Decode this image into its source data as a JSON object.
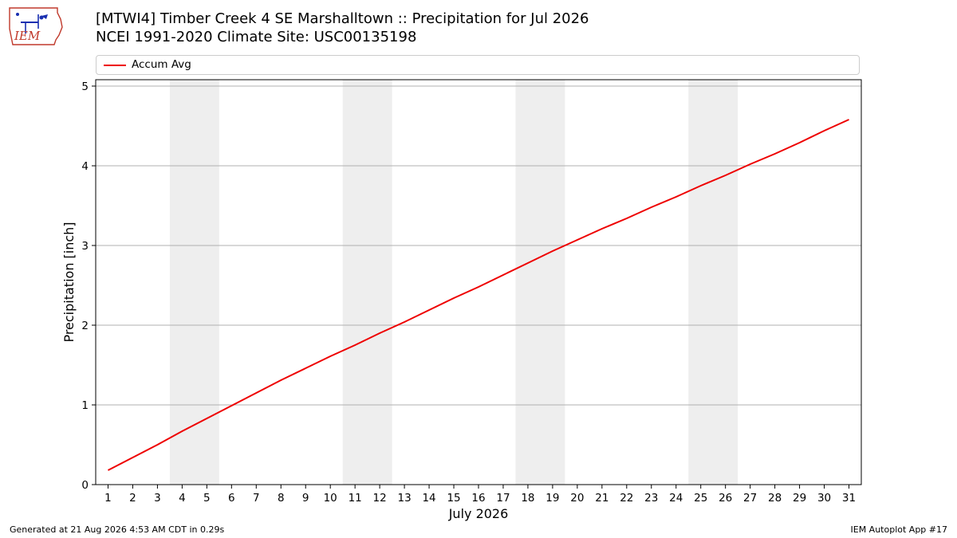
{
  "header": {
    "title_line1": "[MTWI4] Timber Creek 4 SE Marshalltown :: Precipitation for Jul 2026",
    "title_line2": "NCEI 1991-2020 Climate Site: USC00135198"
  },
  "logo": {
    "text": "IEM",
    "icon": "iem-iowa-logo"
  },
  "footer": {
    "left": "Generated at 21 Aug 2026 4:53 AM CDT in 0.29s",
    "right": "IEM Autoplot App #17"
  },
  "colors": {
    "series": "#ee0000",
    "weekend_band": "#eeeeee",
    "grid": "#b0b0b0",
    "logo_red": "#c0392b",
    "logo_blue": "#1a2fb0"
  },
  "chart_data": {
    "type": "line",
    "title": "[MTWI4] Timber Creek 4 SE Marshalltown :: Precipitation for Jul 2026",
    "xlabel": "July 2026",
    "ylabel": "Precipitation [inch]",
    "x": [
      1,
      2,
      3,
      4,
      5,
      6,
      7,
      8,
      9,
      10,
      11,
      12,
      13,
      14,
      15,
      16,
      17,
      18,
      19,
      20,
      21,
      22,
      23,
      24,
      25,
      26,
      27,
      28,
      29,
      30,
      31
    ],
    "xlim": [
      0.5,
      31.5
    ],
    "ylim": [
      0,
      5.08
    ],
    "yticks": [
      0,
      1,
      2,
      3,
      4,
      5
    ],
    "grid": "horizontal",
    "legend_placement": "top",
    "shaded_ranges": [
      [
        3.5,
        5.5
      ],
      [
        10.5,
        12.5
      ],
      [
        17.5,
        19.5
      ],
      [
        24.5,
        26.5
      ]
    ],
    "series": [
      {
        "name": "Accum Avg",
        "values": [
          0.18,
          0.34,
          0.5,
          0.67,
          0.83,
          0.99,
          1.15,
          1.31,
          1.46,
          1.61,
          1.75,
          1.9,
          2.04,
          2.19,
          2.34,
          2.48,
          2.63,
          2.78,
          2.93,
          3.07,
          3.21,
          3.34,
          3.48,
          3.61,
          3.75,
          3.88,
          4.02,
          4.15,
          4.29,
          4.44,
          4.58
        ]
      }
    ]
  }
}
